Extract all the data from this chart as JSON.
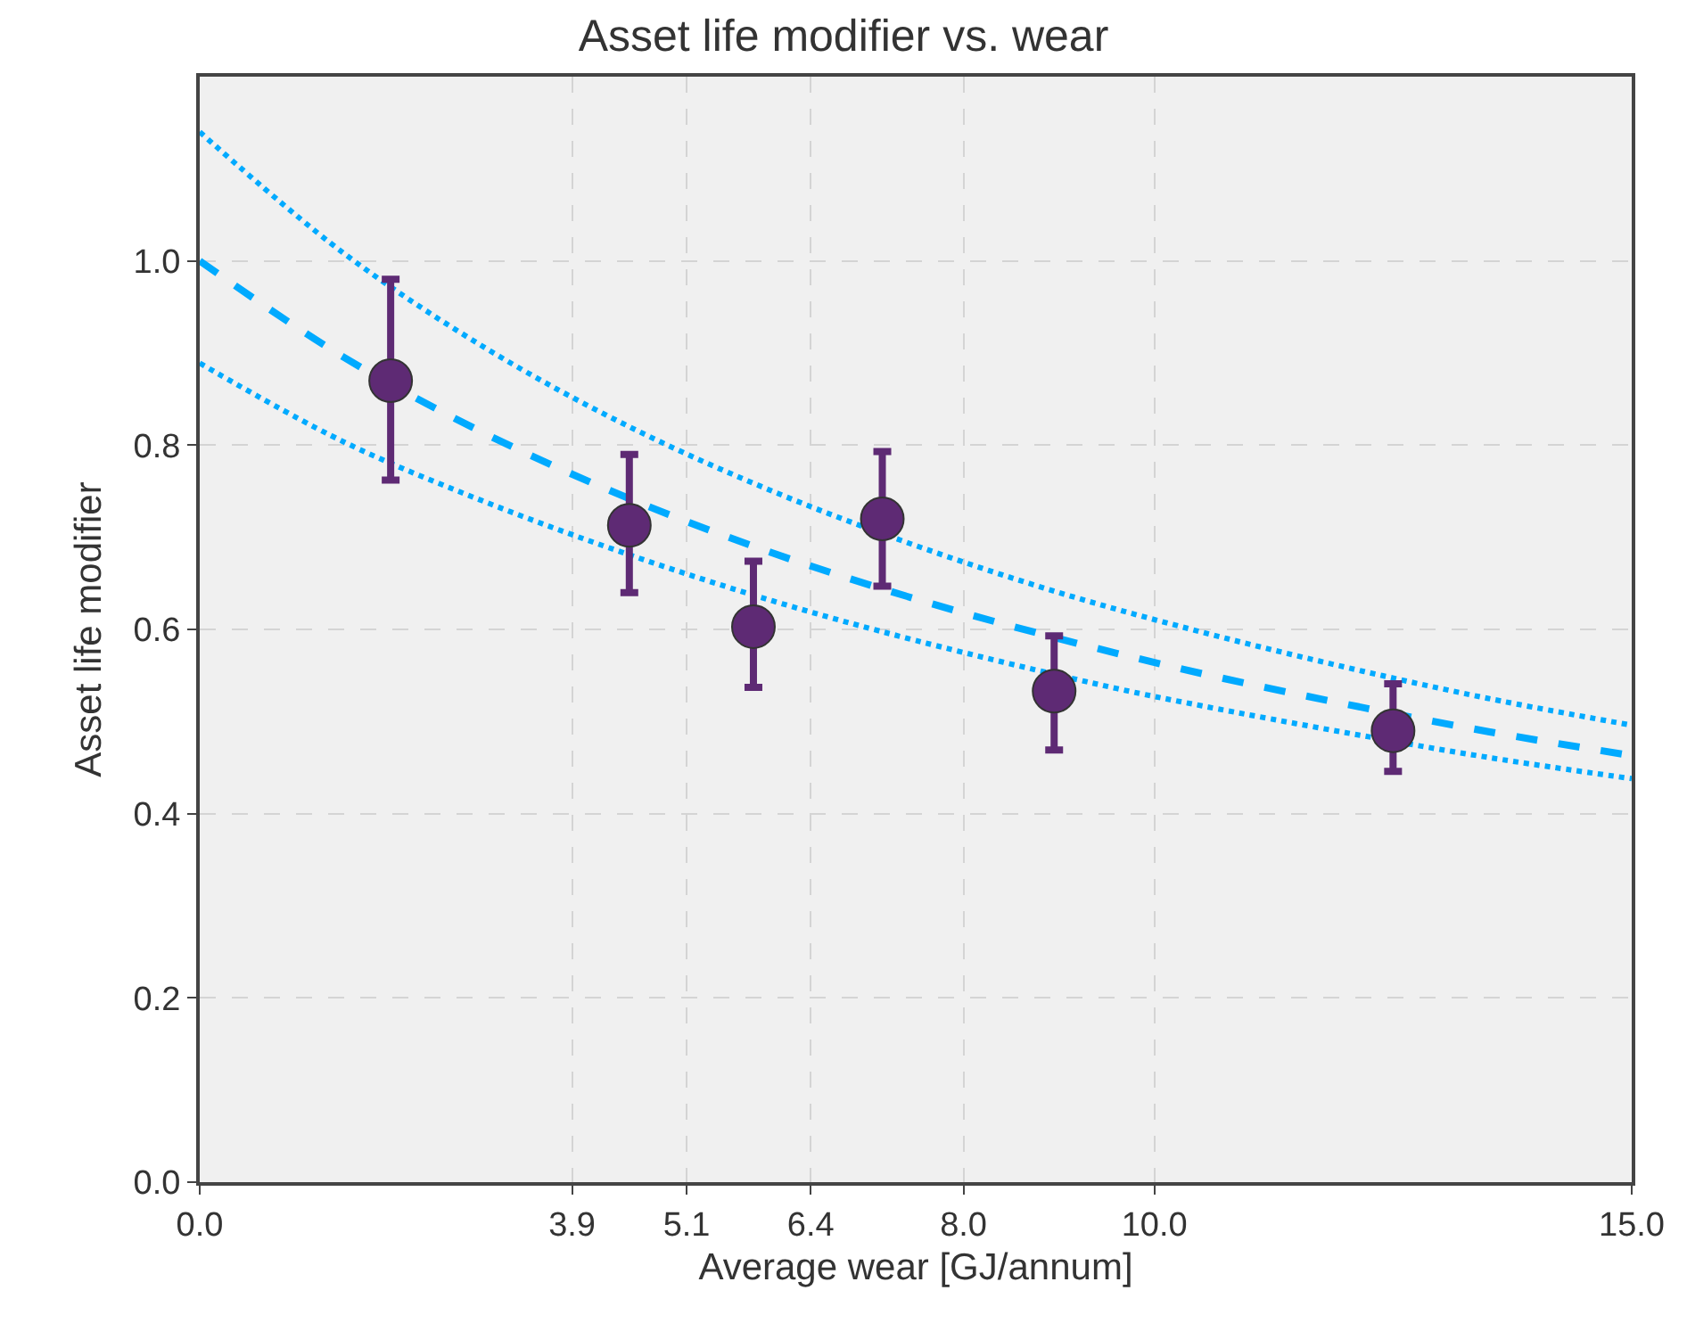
{
  "chart_data": {
    "type": "scatter",
    "title": "Asset life modifier vs. wear",
    "xlabel": "Average wear [GJ/annum]",
    "ylabel": "Asset life modifier",
    "xlim": [
      0,
      15
    ],
    "xticks": [
      {
        "value": 0,
        "label": "0.0"
      },
      {
        "value": 3.9,
        "label": "3.9"
      },
      {
        "value": 5.1,
        "label": "5.1"
      },
      {
        "value": 6.4,
        "label": "6.4"
      },
      {
        "value": 8,
        "label": "8.0"
      },
      {
        "value": 10,
        "label": "10.0"
      },
      {
        "value": 15,
        "label": "15.0"
      }
    ],
    "ylim": [
      0,
      1.2
    ],
    "yticks": [
      {
        "value": 0,
        "label": "0.0"
      },
      {
        "value": 0.2,
        "label": "0.2"
      },
      {
        "value": 0.4,
        "label": "0.4"
      },
      {
        "value": 0.6,
        "label": "0.6"
      },
      {
        "value": 0.8,
        "label": "0.8"
      },
      {
        "value": 1,
        "label": "1.0"
      }
    ],
    "grid": true,
    "series": [
      {
        "type": "line",
        "line_style": "dotted",
        "marker": "none",
        "color": "#00aaff",
        "x": [
          0,
          1.5,
          3,
          4.5,
          6,
          7.5,
          9,
          10.5,
          12,
          13.5,
          15
        ],
        "values": [
          1.14,
          1.009,
          0.905,
          0.82,
          0.75,
          0.691,
          0.64,
          0.597,
          0.559,
          0.525,
          0.496
        ]
      },
      {
        "type": "line",
        "line_style": "dashed",
        "marker": "none",
        "color": "#00aaff",
        "x": [
          0,
          1.5,
          3,
          4.5,
          6,
          7.5,
          9,
          10.5,
          12,
          13.5,
          15
        ],
        "values": [
          1.0,
          0.896,
          0.812,
          0.742,
          0.683,
          0.633,
          0.59,
          0.552,
          0.519,
          0.489,
          0.463
        ]
      },
      {
        "type": "line",
        "line_style": "dotted",
        "marker": "none",
        "color": "#00aaff",
        "x": [
          0,
          1.5,
          3,
          4.5,
          6,
          7.5,
          9.6,
          10.5,
          12,
          13.5,
          15
        ],
        "values": [
          0.889,
          0.804,
          0.738,
          0.681,
          0.631,
          0.588,
          0.536,
          0.517,
          0.488,
          0.461,
          0.438
        ]
      },
      {
        "marker": "circle",
        "color": "#5e2a74",
        "x": [
          2.0,
          4.5,
          5.8,
          7.15,
          8.95,
          12.5
        ],
        "values": [
          0.87,
          0.713,
          0.603,
          0.72,
          0.533,
          0.49
        ],
        "errors": [
          [
            0.762,
            0.98
          ],
          [
            0.64,
            0.79
          ],
          [
            0.537,
            0.674
          ],
          [
            0.647,
            0.793
          ],
          [
            0.469,
            0.593
          ],
          [
            0.446,
            0.541
          ]
        ]
      }
    ]
  }
}
